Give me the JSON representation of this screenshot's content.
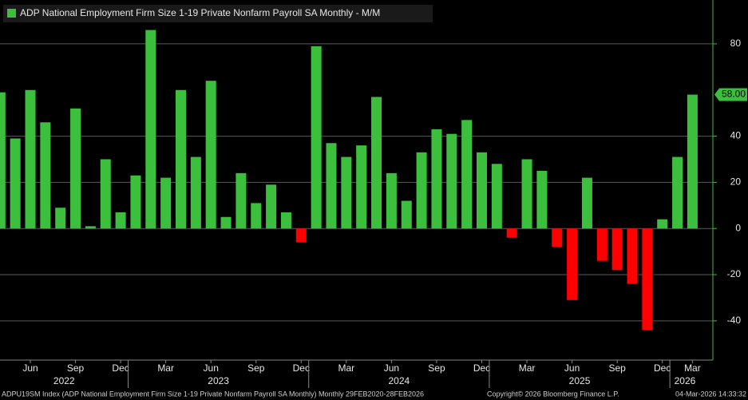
{
  "chart_data": {
    "type": "bar",
    "title": "ADP National Employment Firm Size 1-19 Private Nonfarm Payroll SA Monthly - M/M",
    "categories": [
      null,
      null,
      "Jun",
      null,
      null,
      "Sep",
      null,
      null,
      "Dec",
      null,
      null,
      "Mar",
      null,
      null,
      "Jun",
      null,
      null,
      "Sep",
      null,
      null,
      "Dec",
      null,
      null,
      "Mar",
      null,
      null,
      "Jun",
      null,
      null,
      "Sep",
      null,
      null,
      "Dec",
      null,
      null,
      "Mar",
      null,
      null,
      "Jun",
      null,
      null,
      "Sep",
      null,
      null,
      "Dec",
      null,
      "Mar"
    ],
    "years": [
      "2022",
      "2023",
      "2024",
      "2025",
      "2026"
    ],
    "series": [
      {
        "name": "ADP National Employment Firm Size 1-19 Private Nonfarm Payroll SA Monthly - M/M",
        "color": "#3cbf3c",
        "negative_color": "#ff0000",
        "values": [
          59,
          39,
          60,
          46,
          9,
          52,
          1,
          30,
          7,
          23,
          86,
          22,
          60,
          31,
          64,
          5,
          24,
          11,
          19,
          7,
          -6,
          79,
          37,
          31,
          36,
          57,
          24,
          12,
          33,
          43,
          41,
          47,
          33,
          28,
          -4,
          30,
          25,
          -8,
          -31,
          22,
          -14,
          -18,
          -24,
          -44,
          4,
          31,
          58
        ],
        "value_labels": [
          null,
          null,
          null,
          null,
          null,
          null,
          null,
          null,
          null,
          null,
          null,
          null,
          null,
          null,
          null,
          null,
          null,
          null,
          null,
          null,
          null,
          null,
          null,
          null,
          null,
          null,
          null,
          null,
          null,
          null,
          null,
          null,
          null,
          null,
          null,
          null,
          null,
          null,
          null,
          null,
          null,
          null,
          null,
          null,
          null,
          null,
          "58.00"
        ]
      }
    ],
    "ylim": [
      -57,
      99
    ],
    "yticks": [
      -40,
      -20,
      0,
      20,
      40,
      80
    ],
    "grid": true,
    "footer_left": "ADPU19SM Index (ADP National Employment Firm Size 1-19 Private Nonfarm Payroll SA Monthly) Monthly 29FEB2020-28FEB2026",
    "footer_center": "Copyright© 2026 Bloomberg Finance L.P.",
    "footer_right": "04-Mar-2026 14:33:32"
  }
}
